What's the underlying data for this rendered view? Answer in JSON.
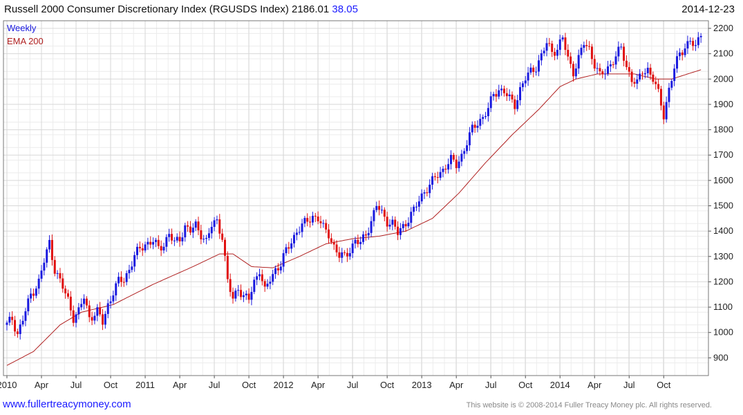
{
  "header": {
    "title": "Russell 2000 Consumer Discretionary Index (RGUSDS Index) 2186.01",
    "change": "38.05",
    "date": "2014-12-23"
  },
  "footer": {
    "website": "www.fullertreacymoney.com",
    "copyright": "This website is © 2008-2014 Fuller Treacy Money plc. All rights reserved."
  },
  "colors": {
    "up": "#1a1adf",
    "down": "#e01010",
    "ema": "#b02020",
    "grid": "#d8d8d8",
    "frame": "#777777"
  },
  "chart_data": {
    "type": "line",
    "title": "Russell 2000 Consumer Discretionary Index (RGUSDS Index)",
    "frequency_label": "Weekly",
    "ema_label": "EMA 200",
    "ylim": [
      830,
      2230
    ],
    "y_ticks": [
      900,
      1000,
      1100,
      1200,
      1300,
      1400,
      1500,
      1600,
      1700,
      1800,
      1900,
      2000,
      2100,
      2200
    ],
    "xlim": [
      0,
      262
    ],
    "x_ticks": [
      {
        "week": 0,
        "label": "2010"
      },
      {
        "week": 13,
        "label": "Apr"
      },
      {
        "week": 26,
        "label": "Jul"
      },
      {
        "week": 39,
        "label": "Oct"
      },
      {
        "week": 52,
        "label": "2011"
      },
      {
        "week": 65,
        "label": "Apr"
      },
      {
        "week": 78,
        "label": "Jul"
      },
      {
        "week": 91,
        "label": "Oct"
      },
      {
        "week": 104,
        "label": "2012"
      },
      {
        "week": 117,
        "label": "Apr"
      },
      {
        "week": 130,
        "label": "Jul"
      },
      {
        "week": 143,
        "label": "Oct"
      },
      {
        "week": 156,
        "label": "2013"
      },
      {
        "week": 169,
        "label": "Apr"
      },
      {
        "week": 182,
        "label": "Jul"
      },
      {
        "week": 195,
        "label": "Oct"
      },
      {
        "week": 208,
        "label": "2014"
      },
      {
        "week": 221,
        "label": "Apr"
      },
      {
        "week": 234,
        "label": "Jul"
      },
      {
        "week": 247,
        "label": "Oct"
      }
    ],
    "price_anchors": [
      [
        0,
        1030
      ],
      [
        2,
        1055
      ],
      [
        4,
        995
      ],
      [
        6,
        1050
      ],
      [
        9,
        1150
      ],
      [
        12,
        1200
      ],
      [
        14,
        1280
      ],
      [
        16,
        1355
      ],
      [
        18,
        1250
      ],
      [
        20,
        1200
      ],
      [
        23,
        1130
      ],
      [
        25,
        1060
      ],
      [
        27,
        1080
      ],
      [
        29,
        1140
      ],
      [
        31,
        1060
      ],
      [
        34,
        1080
      ],
      [
        36,
        1040
      ],
      [
        38,
        1110
      ],
      [
        40,
        1160
      ],
      [
        42,
        1200
      ],
      [
        44,
        1210
      ],
      [
        46,
        1250
      ],
      [
        48,
        1300
      ],
      [
        50,
        1330
      ],
      [
        52,
        1350
      ],
      [
        55,
        1360
      ],
      [
        57,
        1330
      ],
      [
        59,
        1350
      ],
      [
        61,
        1390
      ],
      [
        63,
        1350
      ],
      [
        65,
        1370
      ],
      [
        67,
        1420
      ],
      [
        69,
        1400
      ],
      [
        71,
        1420
      ],
      [
        73,
        1390
      ],
      [
        75,
        1360
      ],
      [
        77,
        1420
      ],
      [
        79,
        1440
      ],
      [
        81,
        1380
      ],
      [
        83,
        1200
      ],
      [
        85,
        1130
      ],
      [
        87,
        1180
      ],
      [
        89,
        1140
      ],
      [
        91,
        1130
      ],
      [
        93,
        1200
      ],
      [
        95,
        1250
      ],
      [
        97,
        1160
      ],
      [
        99,
        1210
      ],
      [
        101,
        1250
      ],
      [
        103,
        1270
      ],
      [
        105,
        1320
      ],
      [
        107,
        1360
      ],
      [
        109,
        1400
      ],
      [
        111,
        1420
      ],
      [
        113,
        1440
      ],
      [
        115,
        1460
      ],
      [
        117,
        1450
      ],
      [
        119,
        1410
      ],
      [
        121,
        1390
      ],
      [
        123,
        1340
      ],
      [
        125,
        1300
      ],
      [
        127,
        1300
      ],
      [
        129,
        1330
      ],
      [
        131,
        1360
      ],
      [
        133,
        1350
      ],
      [
        135,
        1390
      ],
      [
        137,
        1440
      ],
      [
        139,
        1500
      ],
      [
        141,
        1470
      ],
      [
        143,
        1440
      ],
      [
        145,
        1430
      ],
      [
        147,
        1390
      ],
      [
        149,
        1420
      ],
      [
        151,
        1450
      ],
      [
        153,
        1480
      ],
      [
        155,
        1520
      ],
      [
        157,
        1560
      ],
      [
        159,
        1580
      ],
      [
        161,
        1610
      ],
      [
        163,
        1630
      ],
      [
        165,
        1660
      ],
      [
        167,
        1680
      ],
      [
        169,
        1660
      ],
      [
        171,
        1700
      ],
      [
        173,
        1750
      ],
      [
        175,
        1800
      ],
      [
        177,
        1830
      ],
      [
        179,
        1850
      ],
      [
        181,
        1880
      ],
      [
        183,
        1940
      ],
      [
        185,
        1960
      ],
      [
        187,
        1950
      ],
      [
        189,
        1920
      ],
      [
        191,
        1900
      ],
      [
        193,
        1960
      ],
      [
        195,
        2000
      ],
      [
        197,
        2030
      ],
      [
        199,
        2050
      ],
      [
        201,
        2090
      ],
      [
        203,
        2140
      ],
      [
        205,
        2110
      ],
      [
        207,
        2120
      ],
      [
        209,
        2160
      ],
      [
        211,
        2080
      ],
      [
        213,
        2030
      ],
      [
        215,
        2080
      ],
      [
        217,
        2140
      ],
      [
        219,
        2120
      ],
      [
        221,
        2060
      ],
      [
        223,
        2010
      ],
      [
        225,
        2030
      ],
      [
        227,
        2060
      ],
      [
        229,
        2090
      ],
      [
        231,
        2120
      ],
      [
        233,
        2050
      ],
      [
        235,
        2000
      ],
      [
        237,
        1980
      ],
      [
        239,
        2030
      ],
      [
        241,
        2040
      ],
      [
        243,
        2000
      ],
      [
        245,
        1940
      ],
      [
        247,
        1860
      ],
      [
        249,
        1960
      ],
      [
        251,
        2040
      ],
      [
        253,
        2100
      ],
      [
        255,
        2130
      ],
      [
        257,
        2150
      ],
      [
        259,
        2120
      ],
      [
        261,
        2186
      ]
    ],
    "ema_anchors": [
      [
        0,
        870
      ],
      [
        10,
        925
      ],
      [
        20,
        1030
      ],
      [
        28,
        1080
      ],
      [
        40,
        1110
      ],
      [
        55,
        1190
      ],
      [
        70,
        1260
      ],
      [
        80,
        1310
      ],
      [
        85,
        1310
      ],
      [
        92,
        1260
      ],
      [
        100,
        1255
      ],
      [
        110,
        1300
      ],
      [
        120,
        1350
      ],
      [
        130,
        1370
      ],
      [
        140,
        1380
      ],
      [
        150,
        1400
      ],
      [
        160,
        1450
      ],
      [
        170,
        1550
      ],
      [
        180,
        1670
      ],
      [
        190,
        1780
      ],
      [
        200,
        1880
      ],
      [
        208,
        1970
      ],
      [
        214,
        2000
      ],
      [
        222,
        2020
      ],
      [
        230,
        2020
      ],
      [
        236,
        2020
      ],
      [
        244,
        2000
      ],
      [
        250,
        2000
      ],
      [
        256,
        2020
      ],
      [
        262,
        2040
      ]
    ]
  }
}
